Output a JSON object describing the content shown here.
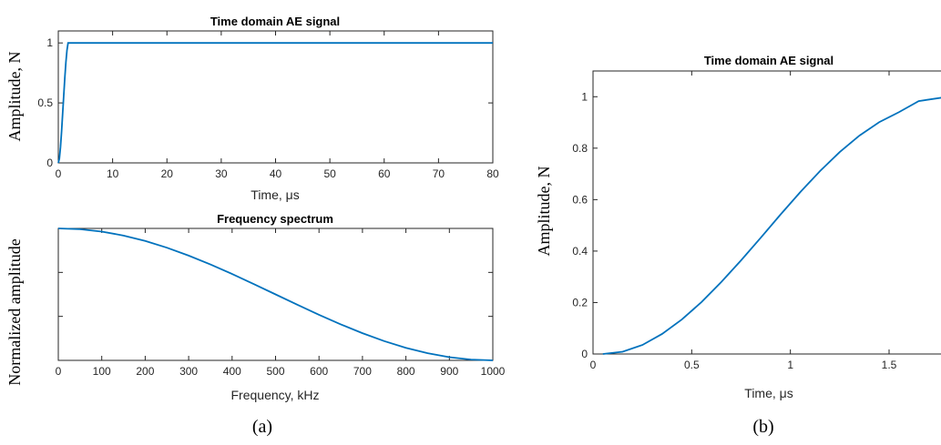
{
  "chart_data": [
    {
      "type": "line",
      "title": "Time domain AE signal",
      "xlabel": "Time, μs",
      "ylabel": "Amplitude, N",
      "xlim": [
        0,
        80
      ],
      "ylim": [
        0,
        1.1
      ],
      "x_ticks": [
        "0",
        "10",
        "20",
        "30",
        "40",
        "50",
        "60",
        "70",
        "80"
      ],
      "y_ticks": [
        "0",
        "0.5",
        "1"
      ],
      "series": [
        {
          "x": [
            0,
            0.2,
            0.4,
            0.6,
            0.8,
            1.0,
            1.2,
            1.4,
            1.6,
            1.8,
            80
          ],
          "y": [
            0,
            0.035,
            0.13,
            0.26,
            0.41,
            0.56,
            0.71,
            0.84,
            0.94,
            1.0,
            1.0
          ]
        }
      ],
      "color": "#0072bd",
      "grid": false
    },
    {
      "type": "line",
      "title": "Frequency spectrum",
      "xlabel": "Frequency, kHz",
      "ylabel": "Normalized amplitude",
      "xlim": [
        0,
        1000
      ],
      "ylim": [
        0,
        1
      ],
      "x_ticks": [
        "0",
        "100",
        "200",
        "300",
        "400",
        "500",
        "600",
        "700",
        "800",
        "900",
        "1000"
      ],
      "series": [
        {
          "x": [
            0,
            50,
            100,
            150,
            200,
            250,
            300,
            350,
            400,
            450,
            500,
            550,
            600,
            650,
            700,
            750,
            800,
            850,
            900,
            950,
            1000
          ],
          "y": [
            1.0,
            0.994,
            0.976,
            0.946,
            0.905,
            0.854,
            0.794,
            0.727,
            0.655,
            0.578,
            0.5,
            0.422,
            0.345,
            0.273,
            0.206,
            0.146,
            0.095,
            0.054,
            0.024,
            0.006,
            0.0
          ]
        }
      ],
      "color": "#0072bd",
      "grid": false
    },
    {
      "type": "line",
      "title": "Time domain AE signal",
      "xlabel": "Time, μs",
      "ylabel": "Amplitude, N",
      "xlim": [
        0,
        1.8
      ],
      "ylim": [
        0,
        1.1
      ],
      "x_ticks": [
        "0",
        "0.5",
        "1",
        "1.5"
      ],
      "y_ticks": [
        "0",
        "0.2",
        "0.4",
        "0.6",
        "0.8",
        "1"
      ],
      "series": [
        {
          "x": [
            0.05,
            0.15,
            0.25,
            0.35,
            0.45,
            0.55,
            0.65,
            0.75,
            0.85,
            0.95,
            1.05,
            1.15,
            1.25,
            1.35,
            1.45,
            1.55,
            1.65,
            1.8
          ],
          "y": [
            0,
            0.009,
            0.035,
            0.078,
            0.134,
            0.202,
            0.28,
            0.364,
            0.452,
            0.542,
            0.629,
            0.711,
            0.785,
            0.849,
            0.901,
            0.94,
            0.983,
            1.0
          ]
        }
      ],
      "color": "#0072bd",
      "grid": false
    }
  ],
  "captions": {
    "a": "(a)",
    "b": "(b)"
  }
}
